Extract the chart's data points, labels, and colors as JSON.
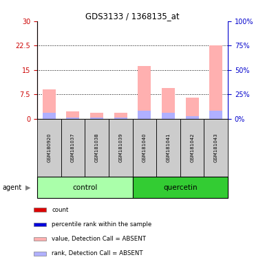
{
  "title": "GDS3133 / 1368135_at",
  "samples": [
    "GSM180920",
    "GSM181037",
    "GSM181038",
    "GSM181039",
    "GSM181040",
    "GSM181041",
    "GSM181042",
    "GSM181043"
  ],
  "pink_values": [
    9.0,
    2.2,
    1.8,
    1.8,
    16.3,
    9.5,
    6.5,
    22.5
  ],
  "blue_values": [
    6.5,
    1.3,
    1.3,
    1.2,
    8.0,
    6.2,
    2.7,
    8.0
  ],
  "left_ylim": [
    0,
    30
  ],
  "left_yticks": [
    0,
    7.5,
    15,
    22.5,
    30
  ],
  "right_ylim": [
    0,
    100
  ],
  "right_yticks": [
    0,
    25,
    50,
    75,
    100
  ],
  "left_color": "#cc0000",
  "right_color": "#0000cc",
  "pink_color": "#ffb0b0",
  "blue_color": "#b0b0ff",
  "ctrl_color": "#aaffaa",
  "quer_color": "#33cc33",
  "sample_box_color": "#cccccc",
  "legend_items": [
    {
      "label": "count",
      "color": "#dd0000"
    },
    {
      "label": "percentile rank within the sample",
      "color": "#0000dd"
    },
    {
      "label": "value, Detection Call = ABSENT",
      "color": "#ffb0b0"
    },
    {
      "label": "rank, Detection Call = ABSENT",
      "color": "#b0b0ff"
    }
  ]
}
